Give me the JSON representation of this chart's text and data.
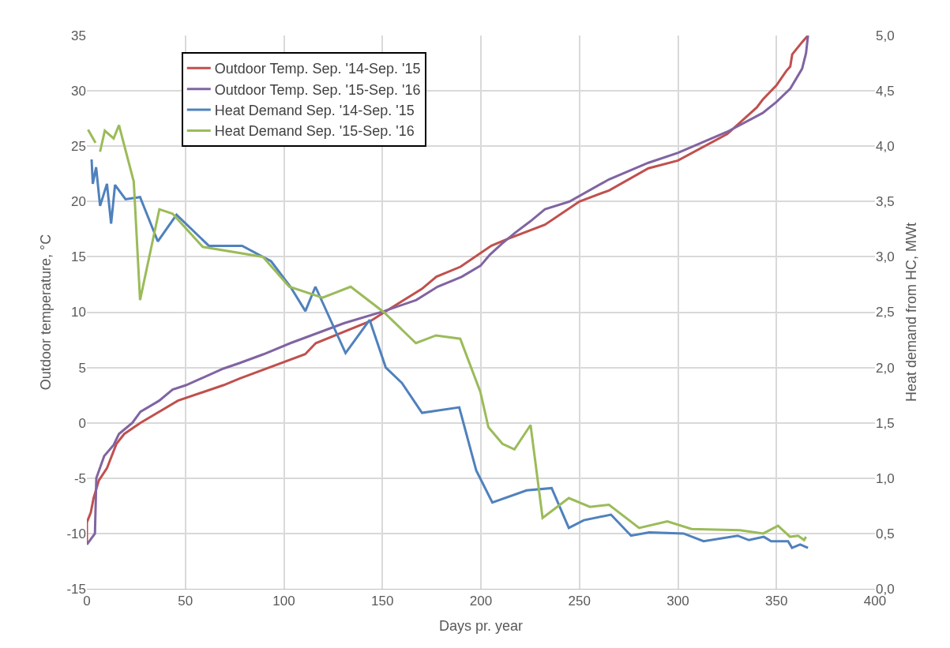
{
  "chart_data": {
    "type": "line",
    "xlabel": "Days pr. year",
    "ylabel": "Outdoor temperature, °C",
    "y2label": "Heat demand from HC, MWt",
    "xlim": [
      0,
      400
    ],
    "xticks": [
      0,
      50,
      100,
      150,
      200,
      250,
      300,
      350,
      400
    ],
    "ylim": [
      -15,
      35
    ],
    "yticks": [
      -15,
      -10,
      -5,
      0,
      5,
      10,
      15,
      20,
      25,
      30,
      35
    ],
    "y2lim": [
      0,
      5
    ],
    "y2ticks": [
      {
        "value": 0,
        "label": "0,0"
      },
      {
        "value": 0.5,
        "label": "0,5"
      },
      {
        "value": 1,
        "label": "1,0"
      },
      {
        "value": 1.5,
        "label": "1,5"
      },
      {
        "value": 2,
        "label": "2,0"
      },
      {
        "value": 2.5,
        "label": "2,5"
      },
      {
        "value": 3,
        "label": "3,0"
      },
      {
        "value": 3.5,
        "label": "3,5"
      },
      {
        "value": 4,
        "label": "4,0"
      },
      {
        "value": 4.5,
        "label": "4,5"
      },
      {
        "value": 5,
        "label": "5,0"
      }
    ],
    "grid": true,
    "legend": "top left",
    "marker": "none",
    "line_style": "solid",
    "series": [
      {
        "name": "Outdoor Temp. Sep. '14-Sep. '15",
        "color": "#c0504d",
        "x": [
          0,
          0,
          2,
          3.4,
          6.1,
          10.2,
          15,
          19,
          27.2,
          46.2,
          69.3,
          77.5,
          110.8,
          116.2,
          144,
          151,
          170,
          177.4,
          189.6,
          205.3,
          213.4,
          232.5,
          250,
          265,
          285,
          300,
          325,
          340,
          343,
          350,
          355,
          357,
          358,
          363,
          366
        ],
        "values": [
          -11,
          -9,
          -8.1,
          -6.8,
          -5.2,
          -4.1,
          -1.9,
          -1,
          0,
          2,
          3.4,
          4,
          6.2,
          7.2,
          9.2,
          10,
          12.1,
          13.2,
          14.1,
          16,
          16.6,
          17.9,
          20,
          21,
          23,
          23.7,
          26.1,
          28.5,
          29.2,
          30.5,
          31.8,
          32.2,
          33.3,
          34.4,
          35
        ]
      },
      {
        "name": "Outdoor Temp. Sep. '15-Sep. '16",
        "color": "#8064a2",
        "x": [
          0,
          4.1,
          4.8,
          8.8,
          13.6,
          16.3,
          23.1,
          27.2,
          36.7,
          43.5,
          50.3,
          69.3,
          77.5,
          89.7,
          103.3,
          130.5,
          151,
          167.2,
          178,
          190.3,
          199.8,
          204.6,
          210.7,
          217.5,
          225,
          232.5,
          245,
          265,
          285,
          300,
          325,
          343,
          350,
          357,
          363,
          365,
          366
        ],
        "values": [
          -11,
          -10,
          -5,
          -3,
          -2,
          -1,
          0,
          1,
          2,
          3,
          3.4,
          4.9,
          5.4,
          6.2,
          7.2,
          9,
          10.1,
          11.1,
          12.3,
          13.2,
          14.2,
          15.2,
          16.2,
          17.2,
          18.2,
          19.3,
          20,
          22,
          23.5,
          24.4,
          26.3,
          28,
          29,
          30.2,
          32,
          33.4,
          35
        ]
      },
      {
        "name": "Heat Demand Sep. '14-Sep. '15",
        "color": "#4f81bd",
        "axis": "y2",
        "x": [
          2.4,
          3,
          4.7,
          6.7,
          10.2,
          12.3,
          14.3,
          19.6,
          27,
          36,
          45.5,
          61.9,
          78.8,
          93.5,
          103.3,
          110.9,
          116,
          131.3,
          143.5,
          151.7,
          159.9,
          170.1,
          189,
          197.6,
          205.8,
          223.2,
          235.9,
          244.6,
          252.2,
          266,
          276.2,
          285.4,
          302.8,
          313,
          330.3,
          336,
          343.6,
          347.3,
          355.9,
          357.9,
          362,
          366
        ],
        "values": [
          3.88,
          3.66,
          3.81,
          3.46,
          3.66,
          3.3,
          3.65,
          3.52,
          3.54,
          3.14,
          3.38,
          3.1,
          3.1,
          2.96,
          2.73,
          2.51,
          2.73,
          2.13,
          2.43,
          2.0,
          1.86,
          1.59,
          1.64,
          1.07,
          0.78,
          0.89,
          0.91,
          0.55,
          0.62,
          0.67,
          0.48,
          0.51,
          0.5,
          0.43,
          0.48,
          0.44,
          0.47,
          0.43,
          0.43,
          0.37,
          0.4,
          0.37
        ]
      },
      {
        "name": "Heat Demand Sep. '15-Sep. '16",
        "color": "#9bbb59",
        "axis": "y2",
        "x": [
          0.6,
          4.4,
          5.5,
          6.7,
          9.1,
          13.6,
          16.3,
          23.8,
          27,
          36.8,
          43.5,
          58.8,
          89.4,
          102.7,
          119.6,
          133.9,
          150.7,
          167,
          177.2,
          189.5,
          199.7,
          203.8,
          210.9,
          217,
          225.2,
          231.3,
          244.6,
          255.3,
          265,
          280.3,
          294.6,
          306.9,
          331.4,
          343.3,
          350.8,
          356.9,
          361,
          364,
          365
        ],
        "values": [
          4.15,
          4.03,
          null,
          3.95,
          4.14,
          4.07,
          4.19,
          3.68,
          2.61,
          3.43,
          3.39,
          3.09,
          3.0,
          2.73,
          2.63,
          2.73,
          2.5,
          2.22,
          2.29,
          2.26,
          1.78,
          1.46,
          1.31,
          1.26,
          1.48,
          0.64,
          0.82,
          0.74,
          0.76,
          0.55,
          0.61,
          0.54,
          0.53,
          0.5,
          0.57,
          0.47,
          0.48,
          0.44,
          0.47
        ]
      }
    ]
  }
}
